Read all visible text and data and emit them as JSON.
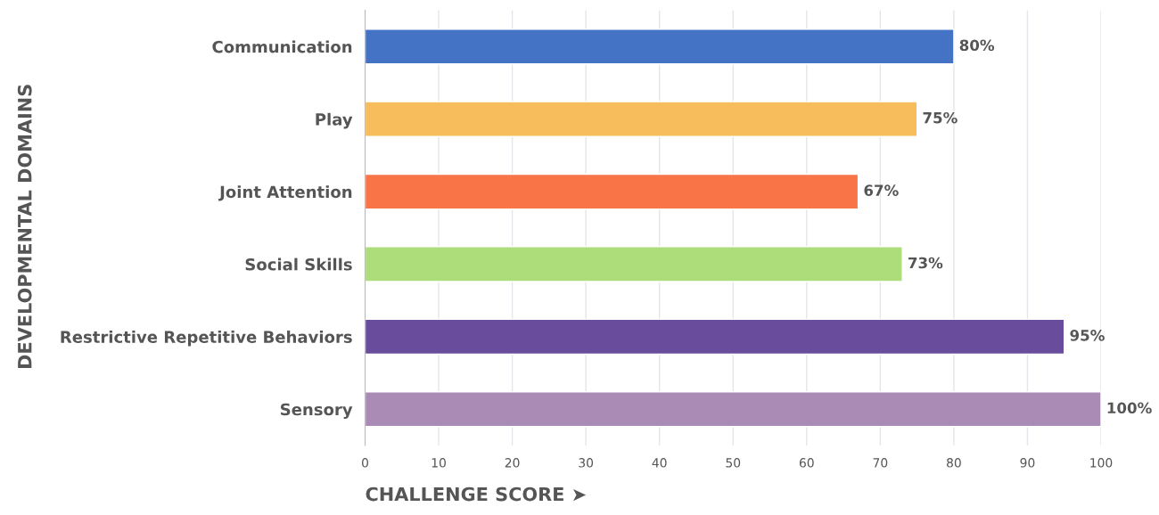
{
  "chart_data": {
    "type": "bar",
    "orientation": "horizontal",
    "xlabel": "CHALLENGE SCORE ➤",
    "ylabel": "DEVELOPMENTAL DOMAINS",
    "categories": [
      "Communication",
      "Play",
      "Joint Attention",
      "Social Skills",
      "Restrictive Repetitive Behaviors",
      "Sensory"
    ],
    "values": [
      80,
      75,
      67,
      73,
      95,
      100
    ],
    "colors": [
      "#4472c4",
      "#f7bc5c",
      "#f97548",
      "#addc7b",
      "#6a4c9c",
      "#a98bb5"
    ],
    "value_labels": [
      "80%",
      "75%",
      "67%",
      "73%",
      "95%",
      "100%"
    ],
    "xlim": [
      0,
      100
    ],
    "xticks": [
      0,
      10,
      20,
      30,
      40,
      50,
      60,
      70,
      80,
      90,
      100
    ],
    "grid": "x"
  }
}
